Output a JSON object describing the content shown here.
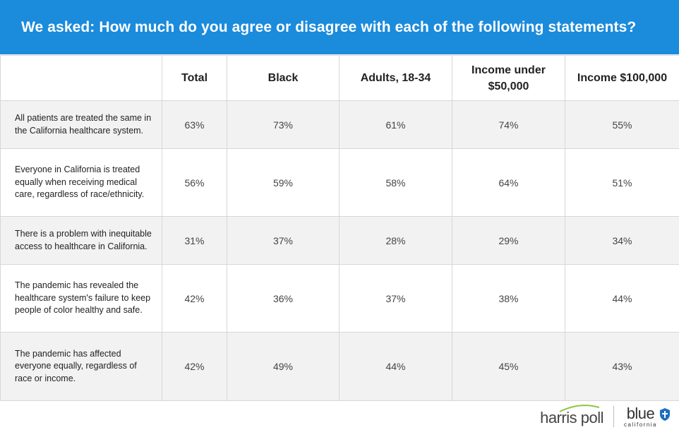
{
  "header": {
    "title": "We asked: How much do you agree or disagree with each of the following statements?"
  },
  "chart_data": {
    "type": "table",
    "columns": [
      "",
      "Total",
      "Black",
      "Adults, 18-34",
      "Income under $50,000",
      "Income $100,000"
    ],
    "rows": [
      {
        "statement": "All patients are treated the same in the California healthcare system.",
        "values": [
          "63%",
          "73%",
          "61%",
          "74%",
          "55%"
        ]
      },
      {
        "statement": "Everyone in California is treated equally when receiving medical care, regardless of race/ethnicity.",
        "values": [
          "56%",
          "59%",
          "58%",
          "64%",
          "51%"
        ]
      },
      {
        "statement": "There is a problem with inequitable access to healthcare in California.",
        "values": [
          "31%",
          "37%",
          "28%",
          "29%",
          "34%"
        ]
      },
      {
        "statement": "The pandemic has revealed the healthcare system's failure to keep people of color healthy and safe.",
        "values": [
          "42%",
          "36%",
          "37%",
          "38%",
          "44%"
        ]
      },
      {
        "statement": "The pandemic has affected everyone equally, regardless of race or income.",
        "values": [
          "42%",
          "49%",
          "44%",
          "45%",
          "43%"
        ]
      }
    ]
  },
  "footer": {
    "logo_harris": "harris poll",
    "logo_blue": "blue",
    "logo_blue_sub": "california"
  },
  "colors": {
    "header_bg": "#1b8bdc",
    "stripe": "#f2f2f2",
    "border": "#d7d7d7",
    "harris_swoosh": "#8dc63f",
    "shield": "#1b6ec2"
  }
}
